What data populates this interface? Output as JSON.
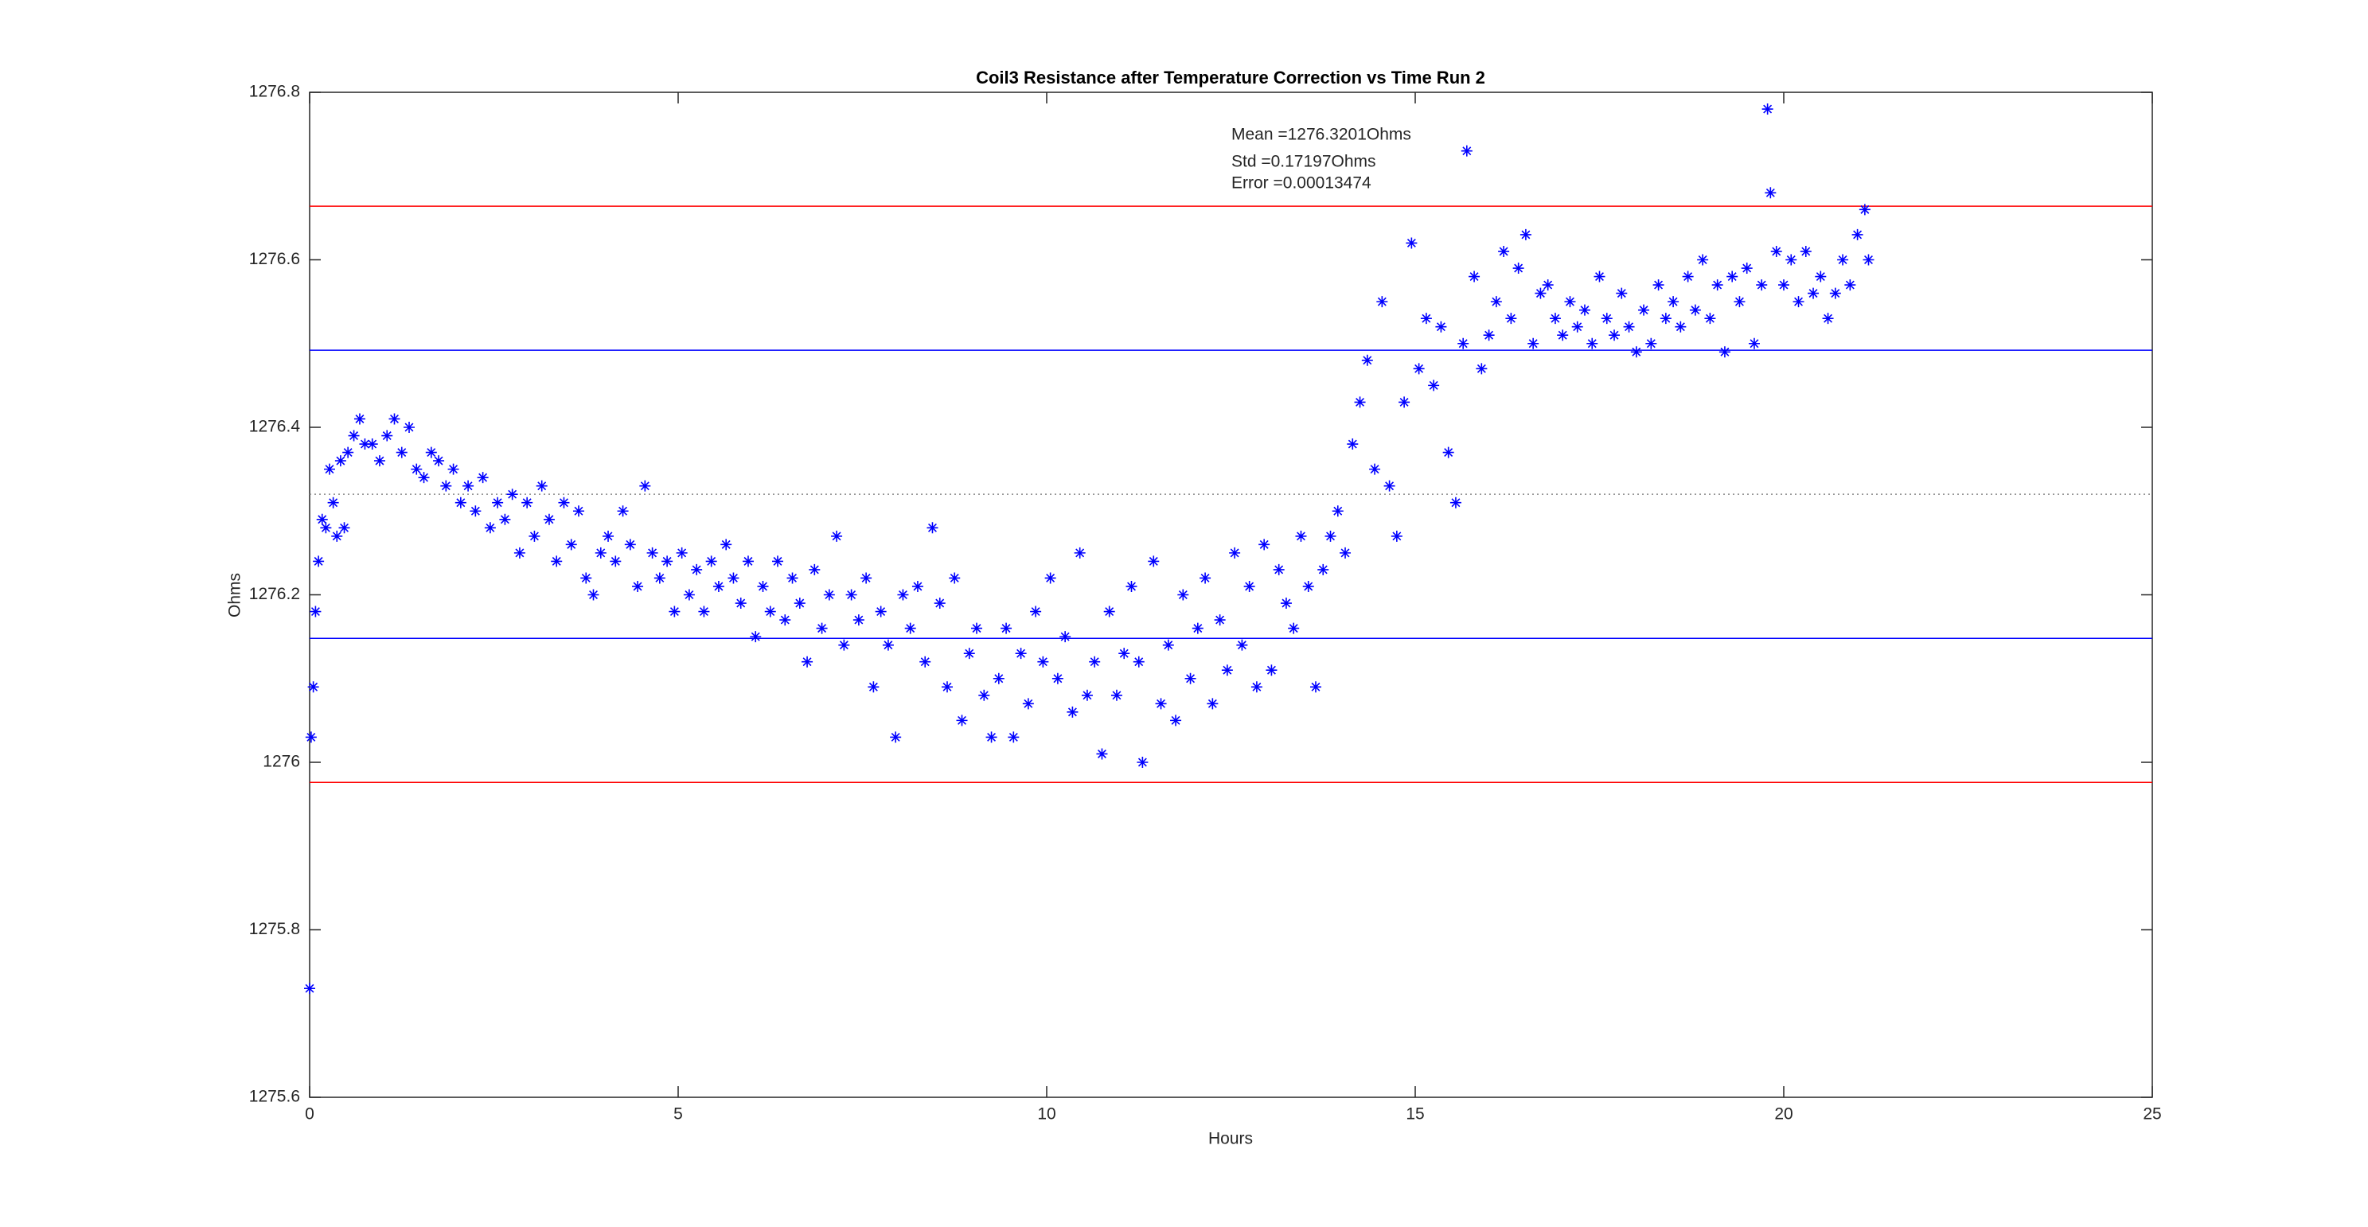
{
  "chart_data": {
    "type": "scatter",
    "title": "Coil3 Resistance after Temperature Correction vs Time Run 2",
    "x_label": "Hours",
    "y_label": "Ohms",
    "annotations": [
      "Mean =1276.3201Ohms",
      "Std =0.17197Ohms",
      "Error =0.00013474"
    ],
    "xlim": [
      0,
      25
    ],
    "xticks": [
      0,
      5,
      10,
      15,
      20,
      25
    ],
    "ylim": [
      1275.6,
      1276.8
    ],
    "yticks": [
      1275.6,
      1275.8,
      1276,
      1276.2,
      1276.4,
      1276.6,
      1276.8
    ],
    "grid": false,
    "reference_lines": [
      {
        "value": 1276.664,
        "color": "#ff0000",
        "style": "solid"
      },
      {
        "value": 1276.492,
        "color": "#0000ff",
        "style": "solid"
      },
      {
        "value": 1276.3201,
        "color": "#888888",
        "style": "dotted"
      },
      {
        "value": 1276.148,
        "color": "#0000ff",
        "style": "solid"
      },
      {
        "value": 1275.976,
        "color": "#ff0000",
        "style": "solid"
      }
    ],
    "series": [
      {
        "color": "#0000ff",
        "x": [
          0,
          0.02,
          0.05,
          0.08,
          0.12,
          0.17,
          0.22,
          0.27,
          0.32,
          0.37,
          0.42,
          0.47,
          0.52,
          0.6,
          0.68,
          0.75,
          0.85,
          0.95,
          1.05,
          1.15,
          1.25,
          1.35,
          1.45,
          1.55,
          1.65,
          1.75,
          1.85,
          1.95,
          2.05,
          2.15,
          2.25,
          2.35,
          2.45,
          2.55,
          2.65,
          2.75,
          2.85,
          2.95,
          3.05,
          3.15,
          3.25,
          3.35,
          3.45,
          3.55,
          3.65,
          3.75,
          3.85,
          3.95,
          4.05,
          4.15,
          4.25,
          4.35,
          4.45,
          4.55,
          4.65,
          4.75,
          4.85,
          4.95,
          5.05,
          5.15,
          5.25,
          5.35,
          5.45,
          5.55,
          5.65,
          5.75,
          5.85,
          5.95,
          6.05,
          6.15,
          6.25,
          6.35,
          6.45,
          6.55,
          6.65,
          6.75,
          6.85,
          6.95,
          7.05,
          7.15,
          7.25,
          7.35,
          7.45,
          7.55,
          7.65,
          7.75,
          7.85,
          7.95,
          8.05,
          8.15,
          8.25,
          8.35,
          8.45,
          8.55,
          8.65,
          8.75,
          8.85,
          8.95,
          9.05,
          9.15,
          9.25,
          9.35,
          9.45,
          9.55,
          9.65,
          9.75,
          9.85,
          9.95,
          10.05,
          10.15,
          10.25,
          10.35,
          10.45,
          10.55,
          10.65,
          10.75,
          10.85,
          10.95,
          11.05,
          11.15,
          11.25,
          11.3,
          11.45,
          11.55,
          11.65,
          11.75,
          11.85,
          11.95,
          12.05,
          12.15,
          12.25,
          12.35,
          12.45,
          12.55,
          12.65,
          12.75,
          12.85,
          12.95,
          13.05,
          13.15,
          13.25,
          13.35,
          13.45,
          13.55,
          13.65,
          13.75,
          13.85,
          13.95,
          14.05,
          14.15,
          14.25,
          14.35,
          14.45,
          14.55,
          14.65,
          14.75,
          14.85,
          14.95,
          15.05,
          15.15,
          15.25,
          15.35,
          15.45,
          15.55,
          15.65,
          15.7,
          15.8,
          15.9,
          16.0,
          16.1,
          16.2,
          16.3,
          16.4,
          16.5,
          16.6,
          16.7,
          16.8,
          16.9,
          17.0,
          17.1,
          17.2,
          17.3,
          17.4,
          17.5,
          17.6,
          17.7,
          17.8,
          17.9,
          18.0,
          18.1,
          18.2,
          18.3,
          18.4,
          18.5,
          18.6,
          18.7,
          18.8,
          18.9,
          19.0,
          19.1,
          19.2,
          19.3,
          19.4,
          19.5,
          19.6,
          19.7,
          19.78,
          19.82,
          19.9,
          20.0,
          20.1,
          20.2,
          20.3,
          20.4,
          20.5,
          20.6,
          20.7,
          20.8,
          20.9,
          21.0,
          21.1,
          21.15
        ],
        "values": [
          1275.73,
          1276.03,
          1276.09,
          1276.18,
          1276.24,
          1276.29,
          1276.28,
          1276.35,
          1276.31,
          1276.27,
          1276.36,
          1276.28,
          1276.37,
          1276.39,
          1276.41,
          1276.38,
          1276.38,
          1276.36,
          1276.39,
          1276.41,
          1276.37,
          1276.4,
          1276.35,
          1276.34,
          1276.37,
          1276.36,
          1276.33,
          1276.35,
          1276.31,
          1276.33,
          1276.3,
          1276.34,
          1276.28,
          1276.31,
          1276.29,
          1276.32,
          1276.25,
          1276.31,
          1276.27,
          1276.33,
          1276.29,
          1276.24,
          1276.31,
          1276.26,
          1276.3,
          1276.22,
          1276.2,
          1276.25,
          1276.27,
          1276.24,
          1276.3,
          1276.26,
          1276.21,
          1276.33,
          1276.25,
          1276.22,
          1276.24,
          1276.18,
          1276.25,
          1276.2,
          1276.23,
          1276.18,
          1276.24,
          1276.21,
          1276.26,
          1276.22,
          1276.19,
          1276.24,
          1276.15,
          1276.21,
          1276.18,
          1276.24,
          1276.17,
          1276.22,
          1276.19,
          1276.12,
          1276.23,
          1276.16,
          1276.2,
          1276.27,
          1276.14,
          1276.2,
          1276.17,
          1276.22,
          1276.09,
          1276.18,
          1276.14,
          1276.03,
          1276.2,
          1276.16,
          1276.21,
          1276.12,
          1276.28,
          1276.19,
          1276.09,
          1276.22,
          1276.05,
          1276.13,
          1276.16,
          1276.08,
          1276.03,
          1276.1,
          1276.16,
          1276.03,
          1276.13,
          1276.07,
          1276.18,
          1276.12,
          1276.22,
          1276.1,
          1276.15,
          1276.06,
          1276.25,
          1276.08,
          1276.12,
          1276.01,
          1276.18,
          1276.08,
          1276.13,
          1276.21,
          1276.12,
          1276.0,
          1276.24,
          1276.07,
          1276.14,
          1276.05,
          1276.2,
          1276.1,
          1276.16,
          1276.22,
          1276.07,
          1276.17,
          1276.11,
          1276.25,
          1276.14,
          1276.21,
          1276.09,
          1276.26,
          1276.11,
          1276.23,
          1276.19,
          1276.16,
          1276.27,
          1276.21,
          1276.09,
          1276.23,
          1276.27,
          1276.3,
          1276.25,
          1276.38,
          1276.43,
          1276.48,
          1276.35,
          1276.55,
          1276.33,
          1276.27,
          1276.43,
          1276.62,
          1276.47,
          1276.53,
          1276.45,
          1276.52,
          1276.37,
          1276.31,
          1276.5,
          1276.73,
          1276.58,
          1276.47,
          1276.51,
          1276.55,
          1276.61,
          1276.53,
          1276.59,
          1276.63,
          1276.5,
          1276.56,
          1276.57,
          1276.53,
          1276.51,
          1276.55,
          1276.52,
          1276.54,
          1276.5,
          1276.58,
          1276.53,
          1276.51,
          1276.56,
          1276.52,
          1276.49,
          1276.54,
          1276.5,
          1276.57,
          1276.53,
          1276.55,
          1276.52,
          1276.58,
          1276.54,
          1276.6,
          1276.53,
          1276.57,
          1276.49,
          1276.58,
          1276.55,
          1276.59,
          1276.5,
          1276.57,
          1276.78,
          1276.68,
          1276.61,
          1276.57,
          1276.6,
          1276.55,
          1276.61,
          1276.56,
          1276.58,
          1276.53,
          1276.56,
          1276.6,
          1276.57,
          1276.63,
          1276.66,
          1276.6
        ]
      }
    ]
  }
}
